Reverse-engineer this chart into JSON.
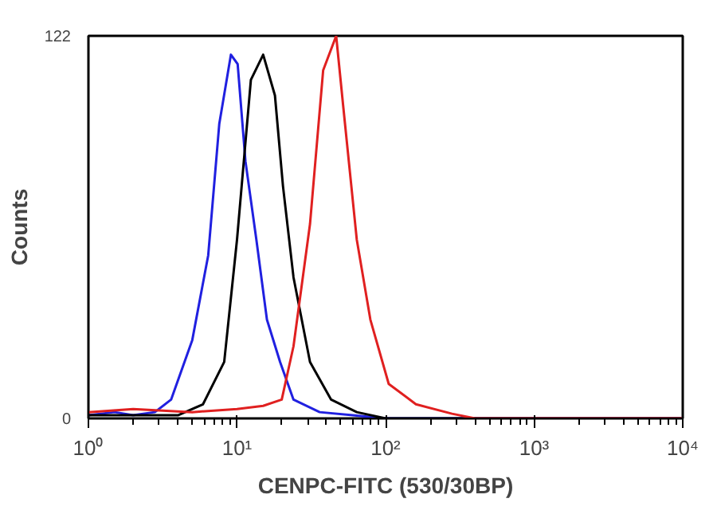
{
  "chart_data": {
    "type": "line",
    "xlabel": "CENPC-FITC (530/30BP)",
    "ylabel": "Counts",
    "log": "x",
    "grid": false,
    "marker": "none",
    "line_style": "solid",
    "xlim": [
      1,
      10000
    ],
    "xticks": [
      {
        "value": 1,
        "label": "10⁰"
      },
      {
        "value": 10,
        "label": "10¹"
      },
      {
        "value": 100,
        "label": "10²"
      },
      {
        "value": 1000,
        "label": "10³"
      },
      {
        "value": 10000,
        "label": "10⁴"
      }
    ],
    "ylim": [
      0,
      122
    ],
    "yticks": [
      0,
      122
    ],
    "series": [
      {
        "color": "#2020e0",
        "x": [
          1,
          1.5,
          2,
          2.8,
          3.6,
          5.0,
          6.4,
          7.6,
          9.1,
          10.1,
          11.4,
          13.5,
          15.9,
          19.5,
          24,
          36,
          60,
          100,
          1000,
          10000
        ],
        "values": [
          1,
          2,
          1,
          2,
          6,
          25,
          52,
          94,
          116,
          113,
          82,
          57,
          31.5,
          18,
          6,
          2,
          1,
          0,
          0,
          0
        ]
      },
      {
        "color": "#000000",
        "x": [
          1,
          2,
          4,
          5.9,
          8.2,
          10,
          12.4,
          15,
          18,
          20.4,
          24,
          31,
          43,
          64,
          100,
          1000,
          10000
        ],
        "values": [
          1,
          1,
          1,
          4.5,
          18,
          57,
          108,
          116,
          103,
          74,
          45,
          18,
          6,
          2,
          0,
          0,
          0
        ]
      },
      {
        "color": "#e02020",
        "x": [
          1,
          2,
          5,
          10,
          15,
          20,
          24,
          31,
          38,
          46.5,
          52,
          64,
          79,
          105,
          160,
          280,
          400,
          1000,
          10000
        ],
        "values": [
          2,
          3,
          2,
          3,
          4,
          6,
          23,
          62,
          111,
          122,
          99,
          57,
          31.5,
          11,
          4.5,
          1.5,
          0,
          0,
          0
        ]
      }
    ]
  }
}
